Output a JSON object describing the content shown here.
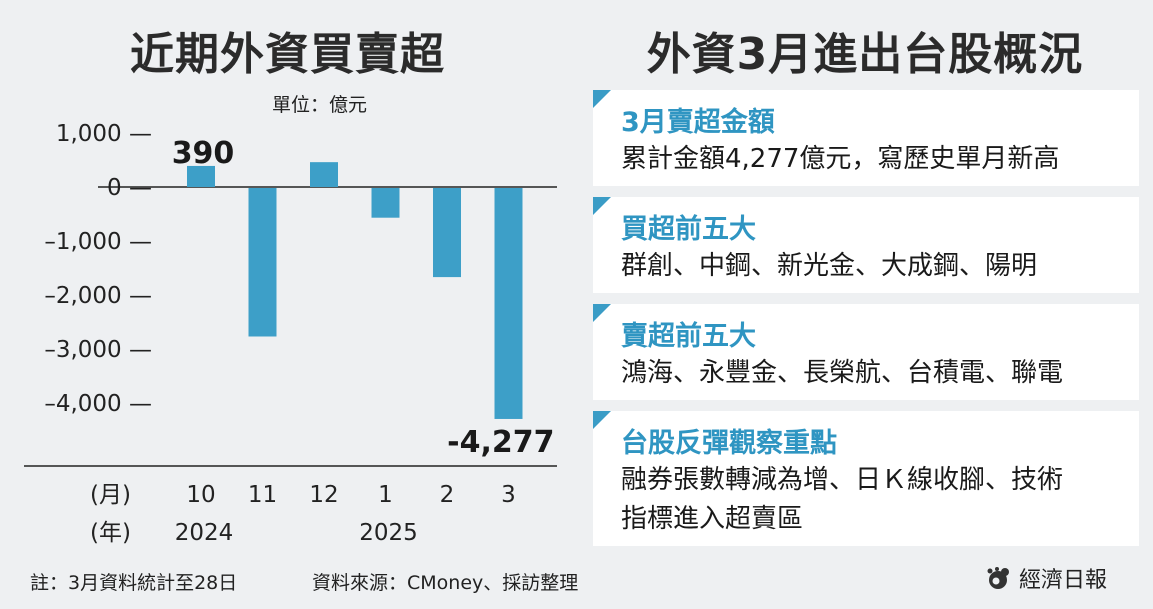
{
  "left_title": "近期外資買賣超",
  "right_title": "外資3月進出台股概況",
  "unit": "單位：億元",
  "chart_data": {
    "type": "bar",
    "categories": [
      "10",
      "11",
      "12",
      "1",
      "2",
      "3"
    ],
    "values": [
      390,
      -2750,
      460,
      -550,
      -1650,
      -4277
    ],
    "yticks": [
      1000,
      0,
      -1000,
      -2000,
      -3000,
      -4000
    ],
    "ytick_labels": [
      "1,000 —",
      "0 —",
      "–1,000 —",
      "–2,000 —",
      "–3,000 —",
      "–4,000 —"
    ],
    "ylim": [
      -4900,
      1200
    ],
    "data_labels": [
      {
        "index": 0,
        "text": "390"
      },
      {
        "index": 5,
        "text": "-4,277"
      }
    ],
    "month_axis_label": "(月)",
    "year_axis_label": "(年)",
    "years": [
      {
        "label": "2024",
        "index": 0
      },
      {
        "label": "2025",
        "index": 3
      }
    ],
    "bar_color": "#3d9fc8",
    "grid": false
  },
  "cards": [
    {
      "head": "3月賣超金額",
      "body": [
        "累計金額4,277億元，寫歷史單月新高"
      ]
    },
    {
      "head": "買超前五大",
      "body": [
        "群創、中鋼、新光金、大成鋼、陽明"
      ]
    },
    {
      "head": "賣超前五大",
      "body": [
        "鴻海、永豐金、長榮航、台積電、聯電"
      ]
    },
    {
      "head": "台股反彈觀察重點",
      "body": [
        "融券張數轉減為增、日Ｋ線收腳、技術",
        "指標進入超賣區"
      ]
    }
  ],
  "footnote": "註：3月資料統計至28日",
  "source": "資料來源：CMoney、採訪整理",
  "brand": "經濟日報",
  "brand_icon": "udn-logo-icon",
  "colors": {
    "accent": "#2f95c2",
    "bar": "#3d9fc8",
    "background": "#eef0f2"
  }
}
